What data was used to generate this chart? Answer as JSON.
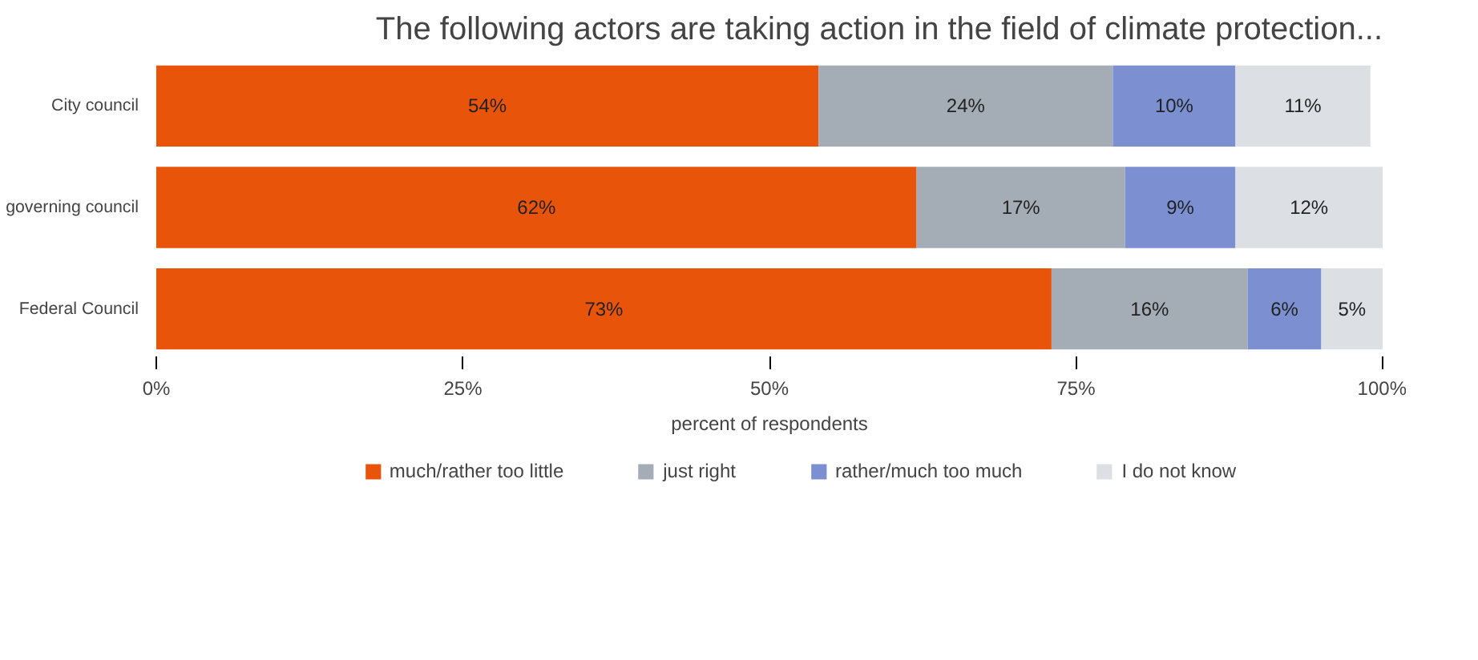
{
  "chart_data": {
    "type": "bar",
    "orientation": "horizontal",
    "stacked": true,
    "title": "The following actors are taking action in the field of climate protection...",
    "xlabel": "percent of respondents",
    "categories": [
      "City council",
      "governing council",
      "Federal Council"
    ],
    "series": [
      {
        "name": "much/rather too little",
        "color": "#e8540a",
        "values": [
          54,
          62,
          73
        ],
        "value_labels": [
          "54%",
          "62%",
          "73%"
        ]
      },
      {
        "name": "just right",
        "color": "#a4adb6",
        "values": [
          24,
          17,
          16
        ],
        "value_labels": [
          "24%",
          "17%",
          "16%"
        ]
      },
      {
        "name": "rather/much too much",
        "color": "#7b8fd1",
        "values": [
          10,
          9,
          6
        ],
        "value_labels": [
          "10%",
          "9%",
          "6%"
        ]
      },
      {
        "name": "I do not know",
        "color": "#dcdfe3",
        "values": [
          11,
          12,
          5
        ],
        "value_labels": [
          "11%",
          "12%",
          "5%"
        ]
      }
    ],
    "xlim": [
      0,
      100
    ],
    "xticks": [
      {
        "value": 0,
        "label": "0%"
      },
      {
        "value": 25,
        "label": "25%"
      },
      {
        "value": 50,
        "label": "50%"
      },
      {
        "value": 75,
        "label": "75%"
      },
      {
        "value": 100,
        "label": "100%"
      }
    ],
    "legend": "bottom",
    "grid": false
  }
}
